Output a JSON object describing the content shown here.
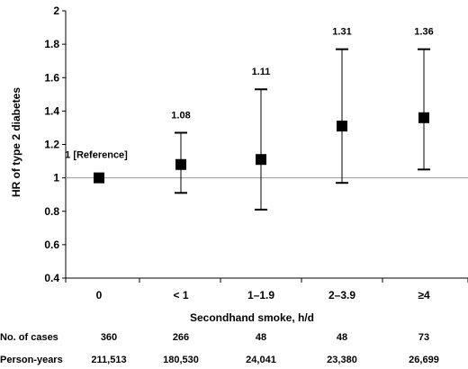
{
  "chart_data": {
    "type": "scatter",
    "ylabel": "HR of type 2 diabetes",
    "xlabel": "Secondhand smoke, h/d",
    "ylim": [
      0.4,
      2
    ],
    "yticks": [
      "0.4",
      "0.6",
      "0.8",
      "1",
      "1.2",
      "1.4",
      "1.6",
      "1.8",
      "2"
    ],
    "reference_line": 1,
    "grid": false,
    "categories": [
      "0",
      "< 1",
      "1–1.9",
      "2–3.9",
      "≥4"
    ],
    "points": [
      {
        "category": "0",
        "hr": 1.0,
        "lower": null,
        "upper": null,
        "label": "1 [Reference]"
      },
      {
        "category": "< 1",
        "hr": 1.08,
        "lower": 0.91,
        "upper": 1.27,
        "label": "1.08"
      },
      {
        "category": "1–1.9",
        "hr": 1.11,
        "lower": 0.81,
        "upper": 1.53,
        "label": "1.11"
      },
      {
        "category": "2–3.9",
        "hr": 1.31,
        "lower": 0.97,
        "upper": 1.77,
        "label": "1.31"
      },
      {
        "category": "≥4",
        "hr": 1.36,
        "lower": 1.05,
        "upper": 1.77,
        "label": "1.36"
      }
    ]
  },
  "table": {
    "rows": [
      {
        "label": "No. of cases",
        "values": [
          "360",
          "266",
          "48",
          "48",
          "73"
        ]
      },
      {
        "label": "Person-years",
        "values": [
          "211,513",
          "180,530",
          "24,041",
          "23,380",
          "26,699"
        ]
      }
    ]
  }
}
